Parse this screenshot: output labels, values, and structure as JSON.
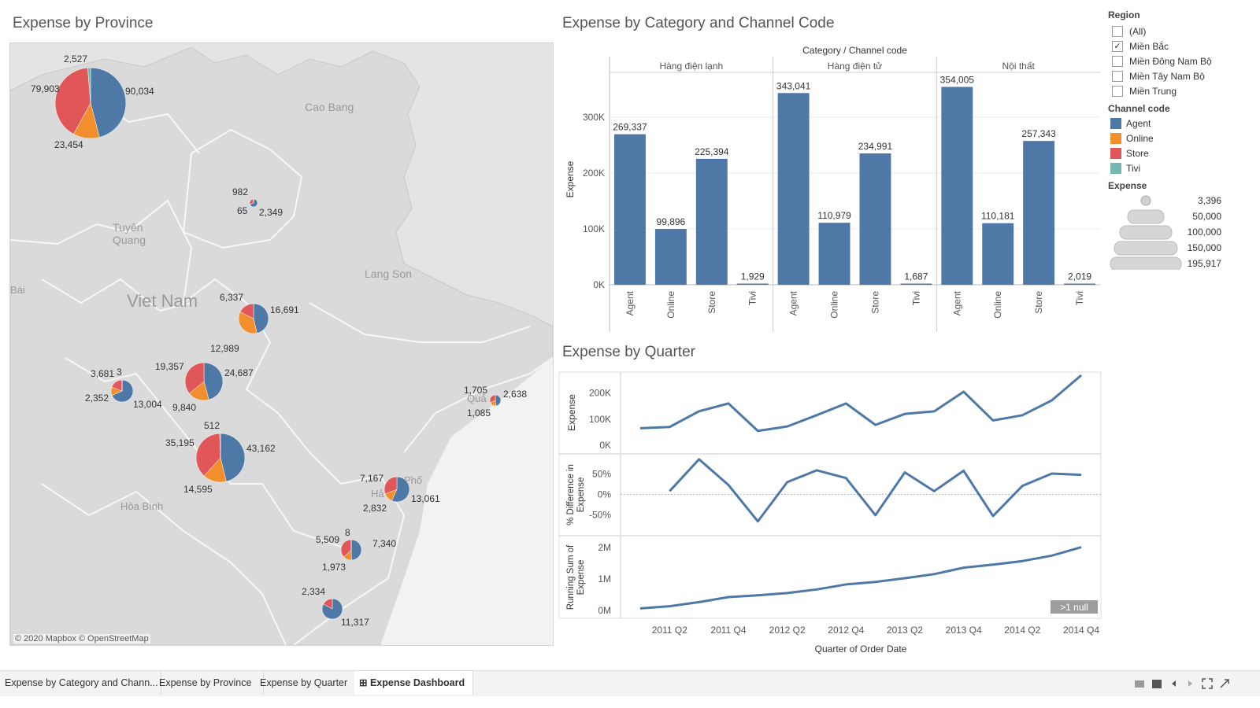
{
  "map": {
    "title": "Expense by Province",
    "place_labels": [
      {
        "text": "Cao Bang"
      },
      {
        "text": "Tuyên"
      },
      {
        "text": "Quang"
      },
      {
        "text": "Lang Son"
      },
      {
        "text": "Viet Nam"
      },
      {
        "text": "Bái"
      },
      {
        "text": "Hòa Bình"
      },
      {
        "text": "Phố"
      },
      {
        "text": "Hả"
      },
      {
        "text": "Quả"
      }
    ],
    "attribution": "© 2020 Mapbox © OpenStreetMap",
    "pies": [
      {
        "agent": 90034,
        "online": 23454,
        "store": 79903,
        "tivi": 2527,
        "labels": [
          "2,527",
          "79,903",
          "90,034",
          "23,454"
        ]
      },
      {
        "agent": 2349,
        "online": 0,
        "store": 982,
        "tivi": 65,
        "labels": [
          "982",
          "65",
          "2,349"
        ]
      },
      {
        "agent": 16691,
        "online": 12989,
        "store": 6337,
        "tivi": 0,
        "labels": [
          "6,337",
          "16,691",
          "12,989"
        ]
      },
      {
        "agent": 24687,
        "online": 9840,
        "store": 19357,
        "tivi": 0,
        "labels": [
          "19,357",
          "24,687",
          "9,840"
        ]
      },
      {
        "agent": 13004,
        "online": 2352,
        "store": 3681,
        "tivi": 3,
        "labels": [
          "3,681",
          "3",
          "2,352",
          "13,004"
        ]
      },
      {
        "agent": 43162,
        "online": 14595,
        "store": 35195,
        "tivi": 512,
        "labels": [
          "512",
          "35,195",
          "43,162",
          "14,595"
        ]
      },
      {
        "agent": 2638,
        "online": 1085,
        "store": 1705,
        "tivi": 0,
        "labels": [
          "1,705",
          "2,638",
          "1,085"
        ]
      },
      {
        "agent": 13061,
        "online": 2832,
        "store": 7167,
        "tivi": 0,
        "labels": [
          "7,167",
          "13,061",
          "2,832"
        ]
      },
      {
        "agent": 7340,
        "online": 1973,
        "store": 5509,
        "tivi": 8,
        "labels": [
          "8",
          "5,509",
          "7,340",
          "1,973"
        ]
      },
      {
        "agent": 11317,
        "online": 0,
        "store": 2334,
        "tivi": 0,
        "labels": [
          "2,334",
          "11,317"
        ]
      }
    ]
  },
  "bar_panel": {
    "title": "Expense by Category and Channel Code",
    "header": "Category / Channel code",
    "y_axis_title": "Expense",
    "y_ticks": [
      "300K",
      "200K",
      "100K",
      "0K"
    ]
  },
  "quarter_panel": {
    "title": "Expense by Quarter",
    "axis_titles": [
      "Expense",
      "% Difference in Expense",
      "Running Sum of Expense"
    ],
    "y_ticks_1": [
      "200K",
      "100K",
      "0K"
    ],
    "y_ticks_2": [
      "50%",
      "0%",
      "-50%"
    ],
    "y_ticks_3": [
      "2M",
      "1M",
      "0M"
    ],
    "x_ticks": [
      "2011 Q2",
      "2011 Q4",
      "2012 Q2",
      "2012 Q4",
      "2013 Q2",
      "2013 Q4",
      "2014 Q2",
      "2014 Q4"
    ],
    "x_title": "Quarter of Order Date",
    "null_badge": ">1 null"
  },
  "legend": {
    "region_title": "Region",
    "region_options": [
      {
        "label": "(All)",
        "checked": false
      },
      {
        "label": "Miền Bắc",
        "checked": true
      },
      {
        "label": "Miền Đông Nam Bộ",
        "checked": false
      },
      {
        "label": "Miền Tây Nam Bộ",
        "checked": false
      },
      {
        "label": "Miền Trung",
        "checked": false
      }
    ],
    "checkmark": "✓",
    "channel_title": "Channel code",
    "channels": [
      {
        "label": "Agent",
        "color": "#4e79a7"
      },
      {
        "label": "Online",
        "color": "#f28e2b"
      },
      {
        "label": "Store",
        "color": "#e15759"
      },
      {
        "label": "Tivi",
        "color": "#76b7b2"
      }
    ],
    "size_title": "Expense",
    "size_values": [
      "3,396",
      "50,000",
      "100,000",
      "150,000",
      "195,917"
    ]
  },
  "tabs": [
    {
      "label": "Expense by Category and Chann...",
      "active": false
    },
    {
      "label": "Expense by Province",
      "active": false
    },
    {
      "label": "Expense by Quarter",
      "active": false
    },
    {
      "label": "Expense Dashboard",
      "active": true
    }
  ],
  "chart_data": [
    {
      "type": "bar",
      "title": "Expense by Category and Channel Code",
      "xlabel": "Category / Channel code",
      "ylabel": "Expense",
      "ylim": [
        0,
        380000
      ],
      "groups": [
        {
          "name": "Hàng điện lạnh",
          "categories": [
            "Agent",
            "Online",
            "Store",
            "Tivi"
          ],
          "values": [
            269337,
            99896,
            225394,
            1929
          ],
          "labels": [
            "269,337",
            "99,896",
            "225,394",
            "1,929"
          ]
        },
        {
          "name": "Hàng điện tử",
          "categories": [
            "Agent",
            "Online",
            "Store",
            "Tivi"
          ],
          "values": [
            343041,
            110979,
            234991,
            1687
          ],
          "labels": [
            "343,041",
            "110,979",
            "234,991",
            "1,687"
          ]
        },
        {
          "name": "Nội thất",
          "categories": [
            "Agent",
            "Online",
            "Store",
            "Tivi"
          ],
          "values": [
            354005,
            110181,
            257343,
            2019
          ],
          "labels": [
            "354,005",
            "110,181",
            "257,343",
            "2,019"
          ]
        }
      ],
      "color": "#4e79a7"
    },
    {
      "type": "line",
      "title": "Expense by Quarter",
      "x": [
        "2011 Q1",
        "2011 Q2",
        "2011 Q3",
        "2011 Q4",
        "2012 Q1",
        "2012 Q2",
        "2012 Q3",
        "2012 Q4",
        "2013 Q1",
        "2013 Q2",
        "2013 Q3",
        "2013 Q4",
        "2014 Q1",
        "2014 Q2",
        "2014 Q3",
        "2014 Q4"
      ],
      "series": [
        {
          "name": "Expense",
          "ylim": [
            0,
            250000
          ],
          "values": [
            65000,
            70000,
            130000,
            160000,
            55000,
            72000,
            115000,
            160000,
            78000,
            120000,
            130000,
            205000,
            95000,
            115000,
            172000,
            268000
          ]
        },
        {
          "name": "% Difference in Expense",
          "ylim": [
            -0.8,
            0.78
          ],
          "values": [
            null,
            0.08,
            0.86,
            0.23,
            -0.66,
            0.3,
            0.59,
            0.4,
            -0.51,
            0.54,
            0.08,
            0.58,
            -0.53,
            0.21,
            0.51,
            0.48
          ]
        },
        {
          "name": "Running Sum of Expense",
          "ylim": [
            0,
            2100000
          ],
          "values": [
            65000,
            135000,
            265000,
            425000,
            480000,
            552000,
            667000,
            827000,
            905000,
            1025000,
            1155000,
            1360000,
            1455000,
            1570000,
            1742000,
            2010000
          ]
        }
      ],
      "color": "#4e79a7"
    }
  ]
}
